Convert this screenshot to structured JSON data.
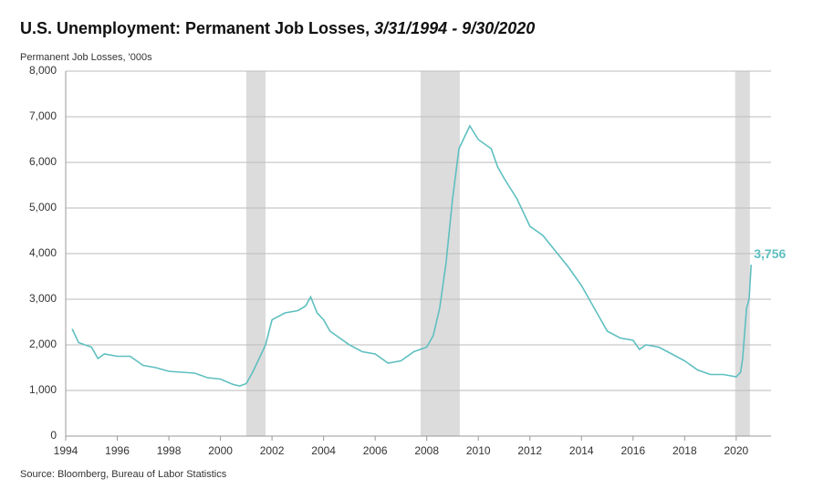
{
  "chart_data": {
    "type": "line",
    "title": "U.S. Unemployment: Permanent Job Losses,",
    "title_dates": "3/31/1994 - 9/30/2020",
    "y_label": "Permanent Job Losses, '000s",
    "source": "Source: Bloomberg, Bureau of Labor Statistics",
    "x": [
      1994.25,
      1994.5,
      1995.0,
      1995.25,
      1995.5,
      1996.0,
      1996.5,
      1997.0,
      1997.5,
      1998.0,
      1998.5,
      1999.0,
      1999.5,
      2000.0,
      2000.5,
      2000.75,
      2001.0,
      2001.25,
      2001.5,
      2001.75,
      2002.0,
      2002.5,
      2003.0,
      2003.3,
      2003.5,
      2003.75,
      2004.0,
      2004.25,
      2004.5,
      2005.0,
      2005.5,
      2006.0,
      2006.5,
      2007.0,
      2007.5,
      2008.0,
      2008.25,
      2008.5,
      2008.75,
      2009.0,
      2009.25,
      2009.5,
      2009.67,
      2010.0,
      2010.5,
      2010.75,
      2011.0,
      2011.5,
      2012.0,
      2012.5,
      2013.0,
      2013.5,
      2014.0,
      2014.5,
      2015.0,
      2015.5,
      2016.0,
      2016.25,
      2016.5,
      2017.0,
      2017.5,
      2018.0,
      2018.5,
      2019.0,
      2019.5,
      2020.0,
      2020.17,
      2020.25,
      2020.4,
      2020.5,
      2020.58
    ],
    "series": [
      {
        "name": "Permanent Job Losses",
        "color": "#5fbfc0",
        "values": [
          2350,
          2050,
          1950,
          1700,
          1800,
          1750,
          1750,
          1550,
          1500,
          1420,
          1400,
          1380,
          1280,
          1250,
          1130,
          1100,
          1150,
          1400,
          1700,
          2000,
          2550,
          2700,
          2750,
          2850,
          3050,
          2700,
          2550,
          2300,
          2200,
          2000,
          1850,
          1800,
          1600,
          1650,
          1850,
          1950,
          2200,
          2800,
          3800,
          5200,
          6300,
          6600,
          6800,
          6500,
          6300,
          5900,
          5650,
          5200,
          4600,
          4400,
          4050,
          3700,
          3300,
          2800,
          2300,
          2150,
          2100,
          1900,
          2000,
          1950,
          1800,
          1650,
          1450,
          1350,
          1350,
          1300,
          1400,
          1700,
          2800,
          3000,
          3756
        ],
        "value_labels": [
          null,
          null,
          null,
          null,
          null,
          null,
          null,
          null,
          null,
          null,
          null,
          null,
          null,
          null,
          null,
          null,
          null,
          null,
          null,
          null,
          null,
          null,
          null,
          null,
          null,
          null,
          null,
          null,
          null,
          null,
          null,
          null,
          null,
          null,
          null,
          null,
          null,
          null,
          null,
          null,
          null,
          null,
          null,
          null,
          null,
          null,
          null,
          null,
          null,
          null,
          null,
          null,
          null,
          null,
          null,
          null,
          null,
          null,
          null,
          null,
          null,
          null,
          null,
          null,
          null,
          null,
          null,
          null,
          null,
          null,
          "3,756"
        ]
      }
    ],
    "shaded_periods": [
      [
        2001.0,
        2001.75
      ],
      [
        2007.76,
        2009.28
      ],
      [
        2019.96,
        2020.53
      ]
    ],
    "shade_color": "#dcdcdc",
    "xlim": [
      1994,
      2021.35
    ],
    "xticks": [
      1994,
      1996,
      1998,
      2000,
      2002,
      2004,
      2006,
      2008,
      2010,
      2012,
      2014,
      2016,
      2018,
      2020
    ],
    "ylim": [
      0,
      8000
    ],
    "yticks": [
      0,
      {
        "value": 1000,
        "label": "1,000"
      },
      {
        "value": 2000,
        "label": "2,000"
      },
      {
        "value": 3000,
        "label": "3,000"
      },
      {
        "value": 4000,
        "label": "4,000"
      },
      {
        "value": 5000,
        "label": "5,000"
      },
      {
        "value": 6000,
        "label": "6,000"
      },
      {
        "value": 7000,
        "label": "7,000"
      },
      {
        "value": 8000,
        "label": "8,000"
      }
    ],
    "grid": true
  }
}
